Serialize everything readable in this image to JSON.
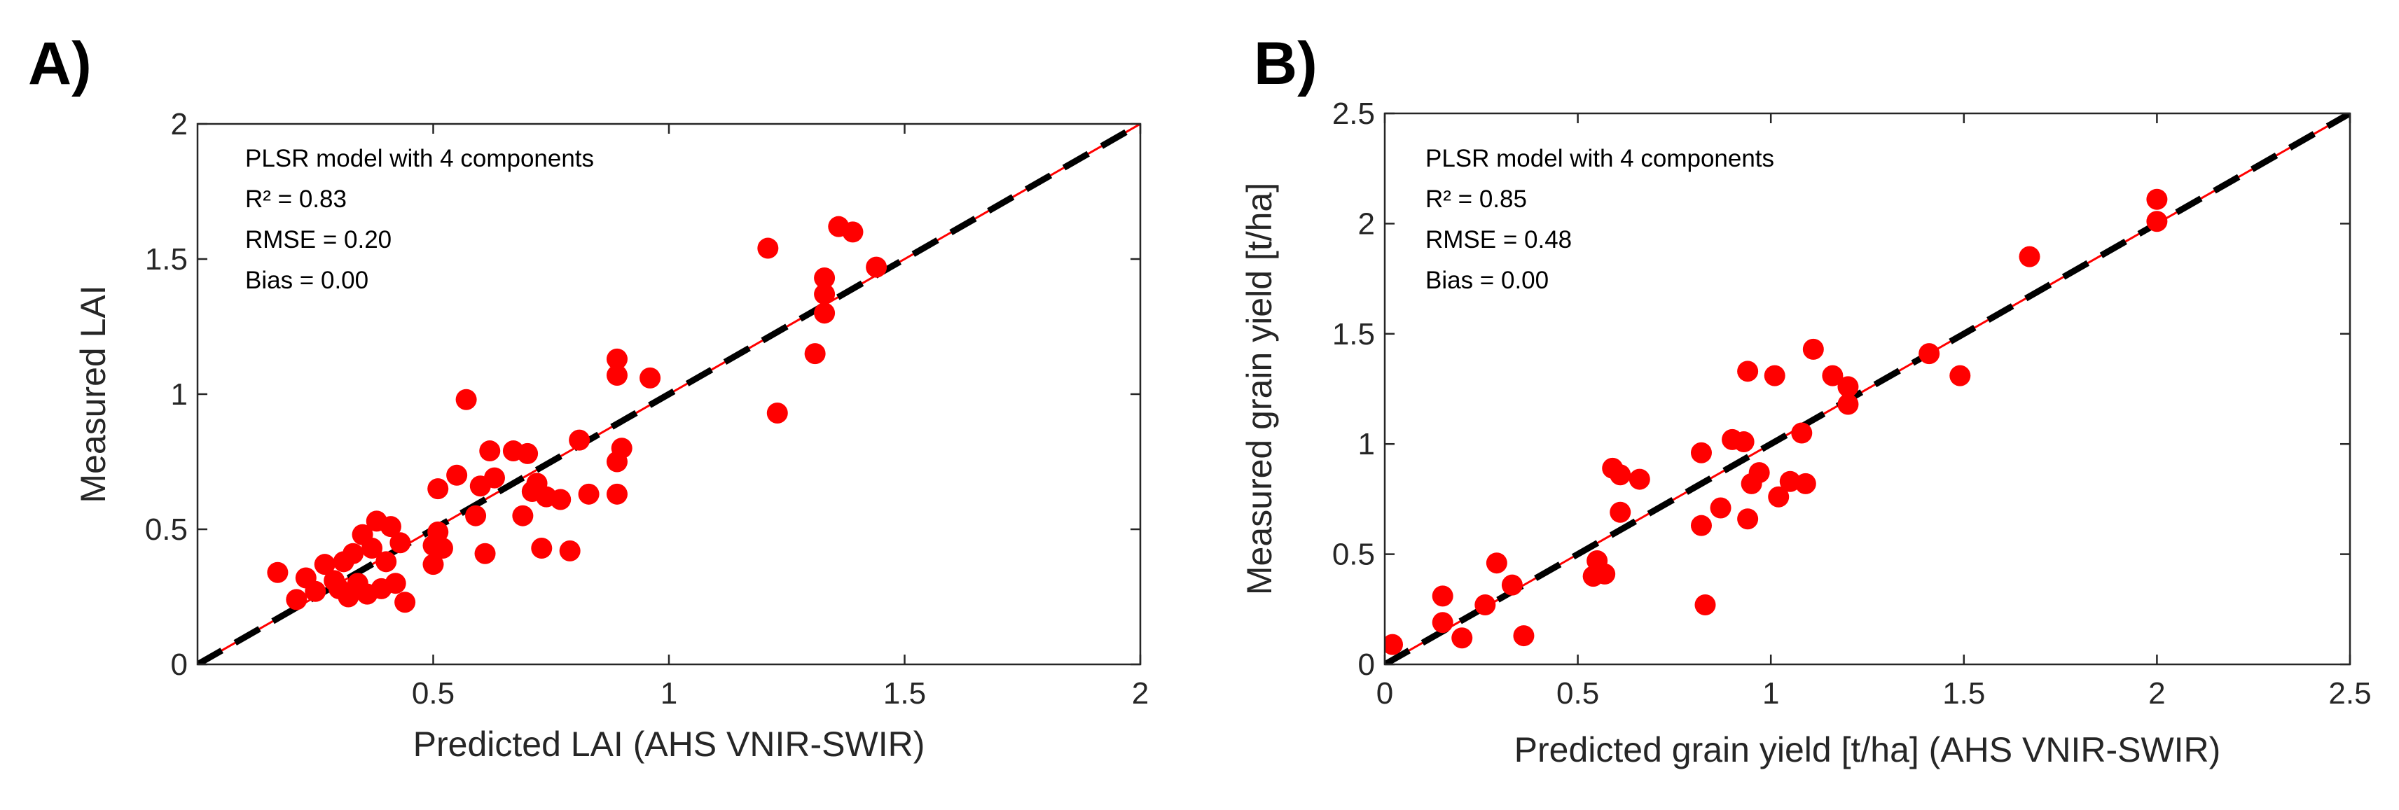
{
  "chart_data": [
    {
      "panel_label": "A)",
      "type": "scatter",
      "xlabel": "Predicted LAI (AHS VNIR-SWIR)",
      "ylabel": "Measured LAI",
      "xlim": [
        0,
        2
      ],
      "ylim": [
        0,
        2
      ],
      "xticks": [
        0.5,
        1,
        1.5,
        2
      ],
      "xtick_labels": [
        "0.5",
        "1",
        "1.5",
        "2"
      ],
      "yticks": [
        0,
        0.5,
        1,
        1.5,
        2
      ],
      "ytick_labels": [
        "0",
        "0.5",
        "1",
        "1.5",
        "2"
      ],
      "grid": false,
      "annotation": [
        "PLSR model with 4 components",
        "R² = 0.83",
        "RMSE = 0.20",
        "Bias = 0.00"
      ],
      "lines": [
        {
          "name": "regression fit",
          "color": "#ff0000",
          "style": "solid",
          "x": [
            0,
            2
          ],
          "y": [
            0,
            2
          ]
        },
        {
          "name": "1:1 line",
          "color": "#000000",
          "style": "dashed",
          "x": [
            0,
            2
          ],
          "y": [
            0,
            2
          ]
        }
      ],
      "series": [
        {
          "name": "samples",
          "color": "#ff0000",
          "points": [
            [
              0.17,
              0.34
            ],
            [
              0.21,
              0.24
            ],
            [
              0.23,
              0.32
            ],
            [
              0.25,
              0.27
            ],
            [
              0.27,
              0.37
            ],
            [
              0.29,
              0.31
            ],
            [
              0.3,
              0.28
            ],
            [
              0.31,
              0.38
            ],
            [
              0.32,
              0.25
            ],
            [
              0.33,
              0.41
            ],
            [
              0.34,
              0.3
            ],
            [
              0.35,
              0.48
            ],
            [
              0.36,
              0.26
            ],
            [
              0.37,
              0.43
            ],
            [
              0.38,
              0.53
            ],
            [
              0.39,
              0.28
            ],
            [
              0.4,
              0.38
            ],
            [
              0.41,
              0.51
            ],
            [
              0.42,
              0.3
            ],
            [
              0.43,
              0.45
            ],
            [
              0.44,
              0.23
            ],
            [
              0.5,
              0.37
            ],
            [
              0.5,
              0.44
            ],
            [
              0.51,
              0.65
            ],
            [
              0.51,
              0.49
            ],
            [
              0.52,
              0.43
            ],
            [
              0.55,
              0.7
            ],
            [
              0.57,
              0.98
            ],
            [
              0.59,
              0.55
            ],
            [
              0.6,
              0.66
            ],
            [
              0.61,
              0.41
            ],
            [
              0.62,
              0.79
            ],
            [
              0.63,
              0.69
            ],
            [
              0.67,
              0.79
            ],
            [
              0.69,
              0.55
            ],
            [
              0.7,
              0.78
            ],
            [
              0.71,
              0.64
            ],
            [
              0.72,
              0.67
            ],
            [
              0.73,
              0.43
            ],
            [
              0.74,
              0.62
            ],
            [
              0.77,
              0.61
            ],
            [
              0.79,
              0.42
            ],
            [
              0.81,
              0.83
            ],
            [
              0.83,
              0.63
            ],
            [
              0.89,
              0.75
            ],
            [
              0.89,
              0.63
            ],
            [
              0.89,
              1.07
            ],
            [
              0.89,
              1.13
            ],
            [
              0.9,
              0.8
            ],
            [
              0.96,
              1.06
            ],
            [
              1.21,
              1.54
            ],
            [
              1.23,
              0.93
            ],
            [
              1.31,
              1.15
            ],
            [
              1.33,
              1.3
            ],
            [
              1.33,
              1.37
            ],
            [
              1.33,
              1.43
            ],
            [
              1.36,
              1.62
            ],
            [
              1.39,
              1.6
            ],
            [
              1.44,
              1.47
            ]
          ]
        }
      ]
    },
    {
      "panel_label": "B)",
      "type": "scatter",
      "xlabel": "Predicted grain yield [t/ha] (AHS VNIR-SWIR)",
      "ylabel": "Measured grain yield [t/ha]",
      "xlim": [
        0,
        2.5
      ],
      "ylim": [
        0,
        2.5
      ],
      "xticks": [
        0,
        0.5,
        1,
        1.5,
        2,
        2.5
      ],
      "xtick_labels": [
        "0",
        "0.5",
        "1",
        "1.5",
        "2",
        "2.5"
      ],
      "yticks": [
        0,
        0.5,
        1,
        1.5,
        2,
        2.5
      ],
      "ytick_labels": [
        "0",
        "0.5",
        "1",
        "1.5",
        "2",
        "2.5"
      ],
      "grid": false,
      "annotation": [
        "PLSR model with 4 components",
        "R² = 0.85",
        "RMSE = 0.48",
        "Bias = 0.00"
      ],
      "lines": [
        {
          "name": "regression fit",
          "color": "#ff0000",
          "style": "solid",
          "x": [
            0,
            2.5
          ],
          "y": [
            0,
            2.5
          ]
        },
        {
          "name": "1:1 line",
          "color": "#000000",
          "style": "dashed",
          "x": [
            0,
            2.5
          ],
          "y": [
            0,
            2.5
          ]
        }
      ],
      "series": [
        {
          "name": "samples",
          "color": "#ff0000",
          "points": [
            [
              0.02,
              0.09
            ],
            [
              0.15,
              0.31
            ],
            [
              0.15,
              0.19
            ],
            [
              0.2,
              0.12
            ],
            [
              0.26,
              0.27
            ],
            [
              0.29,
              0.46
            ],
            [
              0.33,
              0.36
            ],
            [
              0.36,
              0.13
            ],
            [
              0.54,
              0.4
            ],
            [
              0.55,
              0.47
            ],
            [
              0.57,
              0.41
            ],
            [
              0.59,
              0.89
            ],
            [
              0.61,
              0.86
            ],
            [
              0.61,
              0.69
            ],
            [
              0.66,
              0.84
            ],
            [
              0.82,
              0.96
            ],
            [
              0.82,
              0.63
            ],
            [
              0.83,
              0.27
            ],
            [
              0.87,
              0.71
            ],
            [
              0.9,
              1.02
            ],
            [
              0.93,
              1.01
            ],
            [
              0.94,
              1.33
            ],
            [
              0.94,
              0.66
            ],
            [
              0.95,
              0.82
            ],
            [
              0.97,
              0.87
            ],
            [
              1.01,
              1.31
            ],
            [
              1.02,
              0.76
            ],
            [
              1.05,
              0.83
            ],
            [
              1.08,
              1.05
            ],
            [
              1.09,
              0.82
            ],
            [
              1.11,
              1.43
            ],
            [
              1.16,
              1.31
            ],
            [
              1.2,
              1.26
            ],
            [
              1.2,
              1.18
            ],
            [
              1.41,
              1.41
            ],
            [
              1.49,
              1.31
            ],
            [
              1.67,
              1.85
            ],
            [
              2.0,
              2.11
            ],
            [
              2.0,
              2.01
            ]
          ]
        }
      ]
    }
  ]
}
